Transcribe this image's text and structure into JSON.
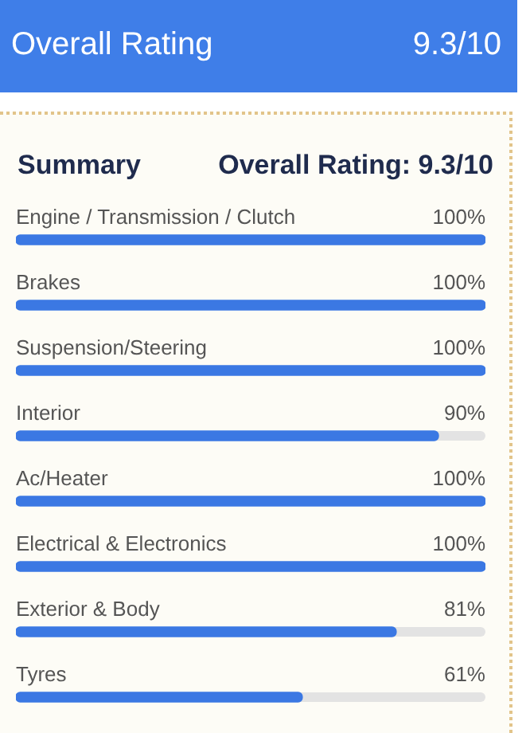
{
  "chart_data": {
    "type": "bar",
    "orientation": "horizontal",
    "title": "Overall Rating",
    "subtitle": "9.3/10",
    "annotations": [
      "Summary",
      "Overall Rating: 9.3/10"
    ],
    "categories": [
      "Engine / Transmission / Clutch",
      "Brakes",
      "Suspension/Steering",
      "Interior",
      "Ac/Heater",
      "Electrical & Electronics",
      "Exterior & Body",
      "Tyres"
    ],
    "values": [
      100,
      100,
      100,
      90,
      100,
      100,
      81,
      61
    ],
    "value_labels": [
      "100%",
      "100%",
      "100%",
      "90%",
      "100%",
      "100%",
      "81%",
      "61%"
    ],
    "color": "#3b78e3",
    "legend": false,
    "tick_labels": false
  }
}
